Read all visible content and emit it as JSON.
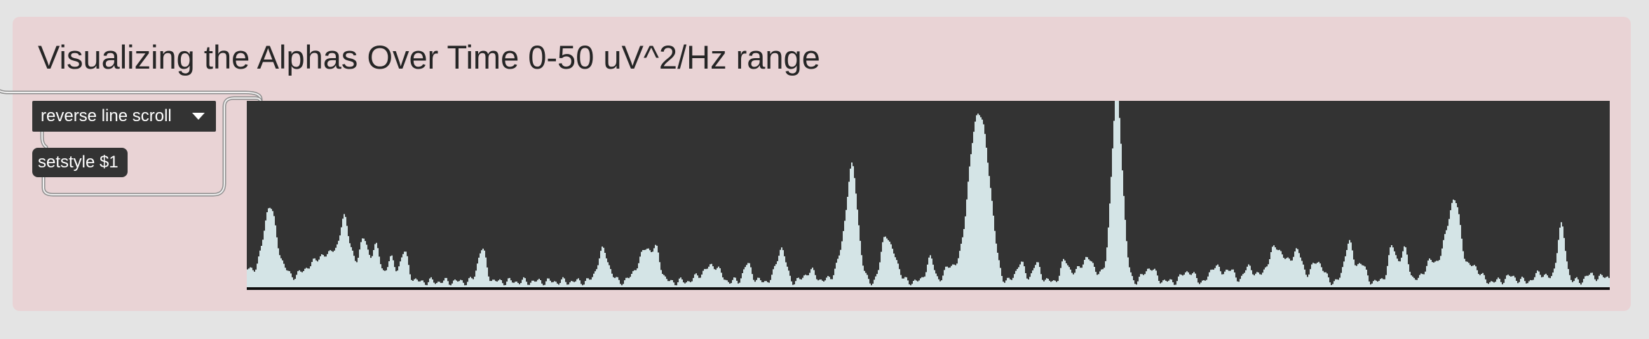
{
  "title": "Visualizing the Alphas Over Time 0-50 uV^2/Hz range",
  "umenu": {
    "selected": "reverse line scroll",
    "icon": "chevron-down-icon"
  },
  "message_box": {
    "label": "setstyle $1"
  },
  "colors": {
    "panel": "#e9d3d5",
    "page": "#e4e4e4",
    "object_bg": "#333333",
    "plot_bg": "#333333",
    "signal_fill": "#d4e4e6",
    "baseline": "#0d0d0d",
    "cord": "#9a9a9a"
  },
  "chart_data": {
    "type": "area",
    "range": [
      0,
      50
    ],
    "peaks": [
      [
        0.0,
        7,
        0.02
      ],
      [
        0.016,
        30,
        0.004
      ],
      [
        0.02,
        11,
        0.006
      ],
      [
        0.046,
        8,
        0.006
      ],
      [
        0.055,
        12,
        0.004
      ],
      [
        0.063,
        17,
        0.003
      ],
      [
        0.071,
        37,
        0.003
      ],
      [
        0.077,
        10,
        0.003
      ],
      [
        0.085,
        25,
        0.003
      ],
      [
        0.094,
        21,
        0.003
      ],
      [
        0.105,
        13,
        0.003
      ],
      [
        0.115,
        17,
        0.003
      ],
      [
        0.172,
        19,
        0.003
      ],
      [
        0.261,
        18,
        0.004
      ],
      [
        0.287,
        9,
        0.004
      ],
      [
        0.293,
        16,
        0.003
      ],
      [
        0.3,
        18,
        0.003
      ],
      [
        0.335,
        5,
        0.005
      ],
      [
        0.343,
        8,
        0.004
      ],
      [
        0.367,
        10,
        0.003
      ],
      [
        0.39,
        5,
        0.004
      ],
      [
        0.392,
        15,
        0.003
      ],
      [
        0.413,
        6,
        0.004
      ],
      [
        0.444,
        61,
        0.004
      ],
      [
        0.437,
        14,
        0.005
      ],
      [
        0.468,
        27,
        0.003
      ],
      [
        0.475,
        14,
        0.003
      ],
      [
        0.501,
        13,
        0.003
      ],
      [
        0.515,
        9,
        0.003
      ],
      [
        0.537,
        83,
        0.006
      ],
      [
        0.53,
        24,
        0.006
      ],
      [
        0.545,
        22,
        0.004
      ],
      [
        0.567,
        11,
        0.003
      ],
      [
        0.579,
        10,
        0.003
      ],
      [
        0.6,
        12,
        0.003
      ],
      [
        0.616,
        13,
        0.006
      ],
      [
        0.638,
        108,
        0.004
      ],
      [
        0.662,
        8,
        0.004
      ],
      [
        0.69,
        6,
        0.004
      ],
      [
        0.71,
        10,
        0.003
      ],
      [
        0.72,
        8,
        0.003
      ],
      [
        0.735,
        8,
        0.004
      ],
      [
        0.755,
        20,
        0.006
      ],
      [
        0.77,
        17,
        0.004
      ],
      [
        0.785,
        12,
        0.004
      ],
      [
        0.808,
        23,
        0.003
      ],
      [
        0.817,
        11,
        0.003
      ],
      [
        0.84,
        20,
        0.003
      ],
      [
        0.849,
        18,
        0.003
      ],
      [
        0.867,
        10,
        0.004
      ],
      [
        0.878,
        14,
        0.005
      ],
      [
        0.888,
        25,
        0.004
      ],
      [
        0.884,
        24,
        0.004
      ],
      [
        0.9,
        9,
        0.004
      ],
      [
        0.927,
        3,
        0.004
      ],
      [
        0.949,
        5,
        0.004
      ],
      [
        0.964,
        32,
        0.003
      ],
      [
        0.986,
        4,
        0.004
      ],
      [
        0.997,
        3,
        0.003
      ]
    ]
  }
}
